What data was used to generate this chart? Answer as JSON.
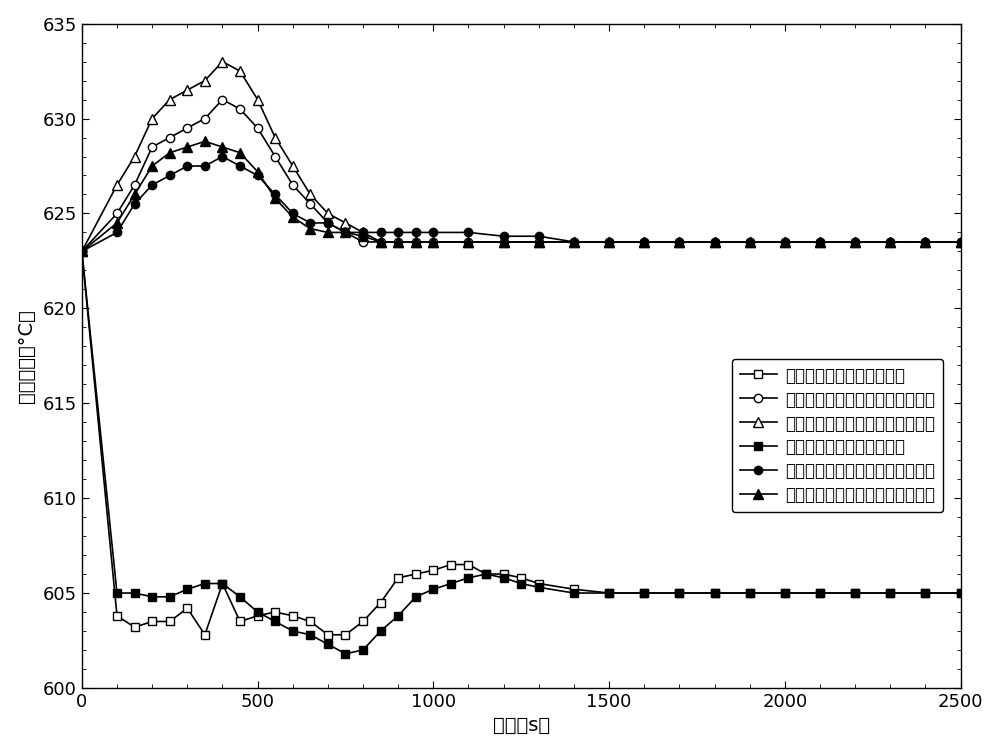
{
  "title": "",
  "xlabel": "时间（s）",
  "ylabel": "蒸汽温度（°C）",
  "xlim": [
    0,
    2500
  ],
  "ylim": [
    600,
    635
  ],
  "xticks": [
    0,
    500,
    1000,
    1500,
    2000,
    2500
  ],
  "yticks": [
    600,
    605,
    610,
    615,
    620,
    625,
    630,
    635
  ],
  "legend_labels": [
    "无高加抽气节流主蒸汽温度",
    "无高加抽气节流一次再热蒸汽温度",
    "无高加抽气节流二次再热蒸汽温度",
    "有高加抽气节流主蒸汽温度",
    "有高加抽气节流一次再热蒸汽温度",
    "有高加抽气节流二次再热蒸汽温度"
  ],
  "series": {
    "no_main": {
      "x": [
        0,
        100,
        150,
        200,
        250,
        300,
        350,
        400,
        450,
        500,
        550,
        600,
        650,
        700,
        750,
        800,
        850,
        900,
        950,
        1000,
        1050,
        1100,
        1150,
        1200,
        1250,
        1300,
        1400,
        1500,
        1600,
        1700,
        1800,
        1900,
        2000,
        2100,
        2200,
        2300,
        2400,
        2500
      ],
      "y": [
        623.0,
        603.8,
        603.2,
        603.5,
        603.5,
        604.2,
        602.8,
        605.5,
        603.5,
        603.8,
        604.0,
        603.8,
        603.5,
        602.8,
        602.8,
        603.5,
        604.5,
        605.8,
        606.0,
        606.2,
        606.5,
        606.5,
        606.0,
        606.0,
        605.8,
        605.5,
        605.2,
        605.0,
        605.0,
        605.0,
        605.0,
        605.0,
        605.0,
        605.0,
        605.0,
        605.0,
        605.0,
        605.0
      ]
    },
    "no_reheat1": {
      "x": [
        0,
        100,
        150,
        200,
        250,
        300,
        350,
        400,
        450,
        500,
        550,
        600,
        650,
        700,
        750,
        800,
        850,
        900,
        950,
        1000,
        1100,
        1200,
        1300,
        1400,
        1500,
        1600,
        1700,
        1800,
        1900,
        2000,
        2100,
        2200,
        2300,
        2400,
        2500
      ],
      "y": [
        623.0,
        625.0,
        626.5,
        628.5,
        629.0,
        629.5,
        630.0,
        631.0,
        630.5,
        629.5,
        628.0,
        626.5,
        625.5,
        624.5,
        624.0,
        623.5,
        623.5,
        623.5,
        623.5,
        623.5,
        623.5,
        623.5,
        623.5,
        623.5,
        623.5,
        623.5,
        623.5,
        623.5,
        623.5,
        623.5,
        623.5,
        623.5,
        623.5,
        623.5,
        623.5
      ]
    },
    "no_reheat2": {
      "x": [
        0,
        100,
        150,
        200,
        250,
        300,
        350,
        400,
        450,
        500,
        550,
        600,
        650,
        700,
        750,
        800,
        850,
        900,
        950,
        1000,
        1100,
        1200,
        1300,
        1400,
        1500,
        1600,
        1700,
        1800,
        1900,
        2000,
        2100,
        2200,
        2300,
        2400,
        2500
      ],
      "y": [
        623.0,
        626.5,
        628.0,
        630.0,
        631.0,
        631.5,
        632.0,
        633.0,
        632.5,
        631.0,
        629.0,
        627.5,
        626.0,
        625.0,
        624.5,
        624.0,
        623.5,
        623.5,
        623.5,
        623.5,
        623.5,
        623.5,
        623.5,
        623.5,
        623.5,
        623.5,
        623.5,
        623.5,
        623.5,
        623.5,
        623.5,
        623.5,
        623.5,
        623.5,
        623.5
      ]
    },
    "with_main": {
      "x": [
        0,
        100,
        150,
        200,
        250,
        300,
        350,
        400,
        450,
        500,
        550,
        600,
        650,
        700,
        750,
        800,
        850,
        900,
        950,
        1000,
        1050,
        1100,
        1150,
        1200,
        1250,
        1300,
        1400,
        1500,
        1600,
        1700,
        1800,
        1900,
        2000,
        2100,
        2200,
        2300,
        2400,
        2500
      ],
      "y": [
        623.0,
        605.0,
        605.0,
        604.8,
        604.8,
        605.2,
        605.5,
        605.5,
        604.8,
        604.0,
        603.5,
        603.0,
        602.8,
        602.3,
        601.8,
        602.0,
        603.0,
        603.8,
        604.8,
        605.2,
        605.5,
        605.8,
        606.0,
        605.8,
        605.5,
        605.3,
        605.0,
        605.0,
        605.0,
        605.0,
        605.0,
        605.0,
        605.0,
        605.0,
        605.0,
        605.0,
        605.0,
        605.0
      ]
    },
    "with_reheat1": {
      "x": [
        0,
        100,
        150,
        200,
        250,
        300,
        350,
        400,
        450,
        500,
        550,
        600,
        650,
        700,
        750,
        800,
        850,
        900,
        950,
        1000,
        1100,
        1200,
        1300,
        1400,
        1500,
        1600,
        1700,
        1800,
        1900,
        2000,
        2100,
        2200,
        2300,
        2400,
        2500
      ],
      "y": [
        623.0,
        624.0,
        625.5,
        626.5,
        627.0,
        627.5,
        627.5,
        628.0,
        627.5,
        627.0,
        626.0,
        625.0,
        624.5,
        624.5,
        624.0,
        624.0,
        624.0,
        624.0,
        624.0,
        624.0,
        624.0,
        623.8,
        623.8,
        623.5,
        623.5,
        623.5,
        623.5,
        623.5,
        623.5,
        623.5,
        623.5,
        623.5,
        623.5,
        623.5,
        623.5
      ]
    },
    "with_reheat2": {
      "x": [
        0,
        100,
        150,
        200,
        250,
        300,
        350,
        400,
        450,
        500,
        550,
        600,
        650,
        700,
        750,
        800,
        850,
        900,
        950,
        1000,
        1100,
        1200,
        1300,
        1400,
        1500,
        1600,
        1700,
        1800,
        1900,
        2000,
        2100,
        2200,
        2300,
        2400,
        2500
      ],
      "y": [
        623.0,
        624.5,
        626.0,
        627.5,
        628.2,
        628.5,
        628.8,
        628.5,
        628.2,
        627.2,
        625.8,
        624.8,
        624.2,
        624.0,
        624.0,
        623.8,
        623.5,
        623.5,
        623.5,
        623.5,
        623.5,
        623.5,
        623.5,
        623.5,
        623.5,
        623.5,
        623.5,
        623.5,
        623.5,
        623.5,
        623.5,
        623.5,
        623.5,
        623.5,
        623.5
      ]
    }
  },
  "background_color": "#ffffff",
  "font_size": 14,
  "legend_fontsize": 12
}
